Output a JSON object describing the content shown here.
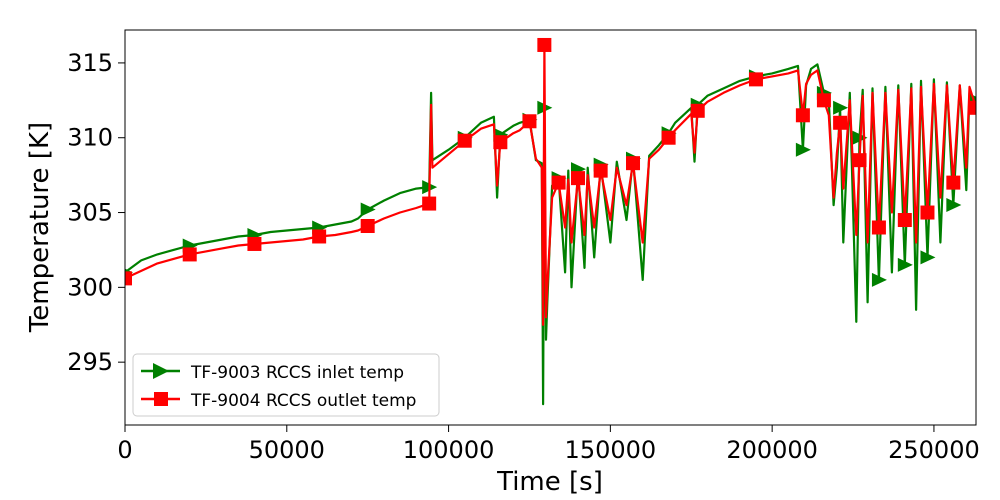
{
  "chart_data": {
    "type": "line",
    "xlabel": "Time [s]",
    "ylabel": "Temperature [K]",
    "xlim": [
      0,
      263000
    ],
    "ylim": [
      290.8,
      317.2
    ],
    "xticks": [
      0,
      50000,
      100000,
      150000,
      200000,
      250000
    ],
    "yticks": [
      295,
      300,
      305,
      310,
      315
    ],
    "grid": false,
    "legend": {
      "placement": "bottom-left"
    },
    "series": [
      {
        "name": "TF-9003 RCCS inlet temp",
        "color": "#008000",
        "marker": "triangle-right",
        "x": [
          0,
          5000,
          10000,
          15000,
          20000,
          25000,
          30000,
          35000,
          40000,
          45000,
          50000,
          55000,
          60000,
          65000,
          70000,
          72000,
          75000,
          80000,
          85000,
          90000,
          94000,
          94600,
          95000,
          100000,
          105000,
          110000,
          114000,
          115000,
          116000,
          118000,
          120000,
          122000,
          125000,
          127000,
          128800,
          129200,
          129600,
          130100,
          130500,
          132000,
          134000,
          136000,
          137000,
          138000,
          140000,
          142000,
          143000,
          145000,
          147000,
          150000,
          152000,
          155000,
          157000,
          160000,
          162000,
          165000,
          168000,
          170000,
          175000,
          176000,
          177000,
          180000,
          185000,
          190000,
          195000,
          200000,
          205000,
          208000,
          209500,
          210500,
          212000,
          214000,
          216000,
          217500,
          219000,
          220000,
          221000,
          222000,
          224000,
          226000,
          227000,
          228000,
          229500,
          231000,
          233000,
          235000,
          237000,
          239000,
          241000,
          243000,
          244500,
          246000,
          248000,
          250000,
          252000,
          254000,
          256000,
          258000,
          260000,
          261000,
          263000
        ],
        "y": [
          301.0,
          301.8,
          302.2,
          302.5,
          302.8,
          303.0,
          303.2,
          303.4,
          303.5,
          303.7,
          303.8,
          303.9,
          304.0,
          304.2,
          304.4,
          304.6,
          305.2,
          305.8,
          306.3,
          306.6,
          306.7,
          313.0,
          308.5,
          309.2,
          310.0,
          311.0,
          311.4,
          306.0,
          310.2,
          310.5,
          310.8,
          311.0,
          311.2,
          308.5,
          308.3,
          292.2,
          312.0,
          296.5,
          299.0,
          306.8,
          307.3,
          301.0,
          307.8,
          300.0,
          307.9,
          301.3,
          308.0,
          302.0,
          308.2,
          303.0,
          308.4,
          304.5,
          308.6,
          300.5,
          308.8,
          309.5,
          310.3,
          311.0,
          312.0,
          308.4,
          312.2,
          312.8,
          313.3,
          313.8,
          314.1,
          314.3,
          314.6,
          314.8,
          309.2,
          313.5,
          314.6,
          314.9,
          313.0,
          312.5,
          305.5,
          308.0,
          312.0,
          303.0,
          313.0,
          297.7,
          310.0,
          313.2,
          299.0,
          313.3,
          300.5,
          313.4,
          301.0,
          313.5,
          301.5,
          313.6,
          298.5,
          313.8,
          302.0,
          313.9,
          303.0,
          313.7,
          305.5,
          313.5,
          306.5,
          313.0,
          312.5
        ]
      },
      {
        "name": "TF-9004 RCCS outlet temp",
        "color": "#ff0000",
        "marker": "square",
        "x": [
          0,
          5000,
          10000,
          15000,
          20000,
          25000,
          30000,
          35000,
          40000,
          45000,
          50000,
          55000,
          60000,
          65000,
          70000,
          72000,
          75000,
          80000,
          85000,
          90000,
          94000,
          94600,
          95000,
          100000,
          105000,
          110000,
          114000,
          115000,
          116000,
          118000,
          120000,
          122000,
          125000,
          127000,
          128800,
          129200,
          129600,
          130100,
          130500,
          132000,
          134000,
          136000,
          137000,
          138000,
          140000,
          142000,
          143000,
          145000,
          147000,
          150000,
          152000,
          155000,
          157000,
          160000,
          162000,
          165000,
          168000,
          170000,
          175000,
          176000,
          177000,
          180000,
          185000,
          190000,
          195000,
          200000,
          205000,
          208000,
          209500,
          210500,
          212000,
          214000,
          216000,
          217500,
          219000,
          220000,
          221000,
          222000,
          224000,
          226000,
          227000,
          228000,
          229500,
          231000,
          233000,
          235000,
          237000,
          239000,
          241000,
          243000,
          244500,
          246000,
          248000,
          250000,
          252000,
          254000,
          256000,
          258000,
          260000,
          261000,
          263000
        ],
        "y": [
          300.6,
          301.1,
          301.6,
          301.9,
          302.2,
          302.4,
          302.6,
          302.8,
          302.9,
          303.0,
          303.1,
          303.2,
          303.4,
          303.5,
          303.7,
          303.8,
          304.1,
          304.6,
          305.0,
          305.3,
          305.6,
          312.2,
          308.0,
          308.9,
          309.8,
          310.6,
          310.9,
          306.8,
          309.7,
          310.0,
          310.3,
          310.5,
          311.1,
          308.6,
          308.0,
          297.5,
          316.2,
          298.0,
          300.0,
          306.0,
          307.0,
          304.0,
          307.2,
          303.0,
          307.3,
          303.5,
          307.5,
          304.0,
          307.8,
          304.5,
          308.0,
          305.5,
          308.3,
          303.0,
          308.6,
          309.2,
          310.0,
          310.5,
          311.6,
          309.0,
          311.8,
          312.4,
          313.0,
          313.5,
          313.9,
          314.1,
          314.3,
          314.5,
          311.5,
          313.6,
          314.2,
          314.5,
          312.5,
          311.5,
          306.0,
          309.0,
          311.0,
          306.6,
          312.5,
          303.5,
          308.5,
          312.8,
          303.0,
          313.0,
          304.0,
          313.0,
          305.0,
          313.2,
          304.5,
          313.3,
          303.0,
          313.4,
          305.0,
          313.6,
          306.0,
          313.5,
          307.0,
          313.5,
          308.0,
          313.4,
          312.0
        ]
      }
    ]
  }
}
